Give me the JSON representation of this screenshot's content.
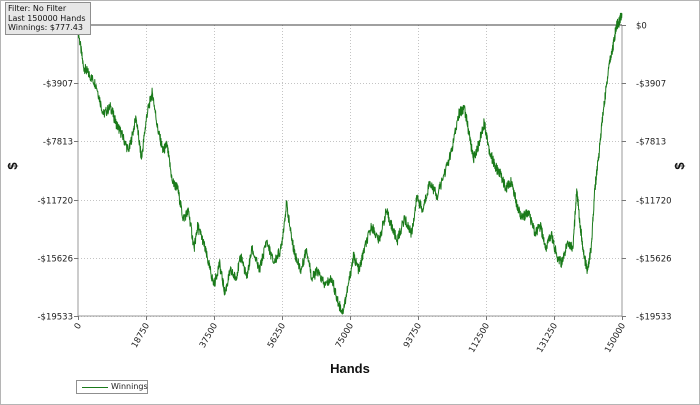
{
  "info_box": {
    "filter": "Filter: No Filter",
    "last": "Last  150000 Hands",
    "winnings": "Winnings: $777.43"
  },
  "chart_data": {
    "type": "line",
    "xlabel": "Hands",
    "ylabel": "$",
    "xlim": [
      0,
      150000
    ],
    "ylim": [
      -19533,
      777.43
    ],
    "x_ticks": [
      0,
      18750,
      37500,
      56250,
      75000,
      93750,
      112500,
      131250,
      150000
    ],
    "x_tick_labels": [
      "0",
      "18750",
      "37500",
      "56250",
      "75000",
      "93750",
      "112500",
      "131250",
      "150000"
    ],
    "y_ticks": [
      0,
      -3907,
      -7813,
      -11720,
      -15626,
      -19533
    ],
    "y_tick_labels": [
      "$0",
      "-$3907",
      "-$7813",
      "-$11720",
      "-$15626",
      "-$19533"
    ],
    "grid": true,
    "legend_position": "bottom-left",
    "series": [
      {
        "name": "Winnings",
        "color": "#1a7a1a",
        "x": [
          0,
          1500,
          3000,
          5000,
          7000,
          9000,
          10500,
          12000,
          14000,
          16000,
          17500,
          19000,
          20500,
          22000,
          23500,
          24500,
          26000,
          27500,
          29000,
          30500,
          32000,
          33000,
          34500,
          36000,
          37500,
          39000,
          40500,
          42000,
          43500,
          45000,
          46500,
          48000,
          50000,
          52000,
          54000,
          56000,
          57500,
          59000,
          60000,
          61500,
          63000,
          64500,
          66000,
          68000,
          70000,
          71500,
          73000,
          74500,
          76000,
          77500,
          79000,
          81000,
          83000,
          85000,
          86500,
          88000,
          90000,
          92000,
          93500,
          95000,
          97000,
          99000,
          101000,
          103000,
          105000,
          106500,
          108000,
          109000,
          110500,
          112000,
          113500,
          115000,
          116500,
          118000,
          119500,
          121000,
          122500,
          124000,
          126000,
          127500,
          129000,
          130500,
          132000,
          133500,
          135000,
          136500,
          137500,
          138500,
          139500,
          140500,
          141500,
          142500,
          143500,
          144500,
          145500,
          146500,
          147500,
          148500,
          149200,
          150000
        ],
        "values": [
          -300,
          -2800,
          -3300,
          -4000,
          -6000,
          -5500,
          -6600,
          -7300,
          -8500,
          -6200,
          -9000,
          -6000,
          -4500,
          -7000,
          -8500,
          -8000,
          -10500,
          -11000,
          -13000,
          -12500,
          -15000,
          -13500,
          -14500,
          -16000,
          -17500,
          -16000,
          -18000,
          -16500,
          -17000,
          -15500,
          -17000,
          -15000,
          -16500,
          -14500,
          -16000,
          -15000,
          -12000,
          -14500,
          -15500,
          -16500,
          -15000,
          -17000,
          -16500,
          -17500,
          -17000,
          -18500,
          -19300,
          -17500,
          -15500,
          -16500,
          -15000,
          -13500,
          -14500,
          -12500,
          -13500,
          -14500,
          -13000,
          -14000,
          -11500,
          -12500,
          -10500,
          -11500,
          -10000,
          -8500,
          -6000,
          -5500,
          -7500,
          -9000,
          -8000,
          -6500,
          -8500,
          -9500,
          -10000,
          -11000,
          -10500,
          -12000,
          -13000,
          -12500,
          -14000,
          -13500,
          -15000,
          -14000,
          -15500,
          -16000,
          -14500,
          -15000,
          -11000,
          -13500,
          -15500,
          -16500,
          -15000,
          -11000,
          -9000,
          -6500,
          -4500,
          -2500,
          -1500,
          0,
          200,
          777.43
        ]
      }
    ]
  }
}
